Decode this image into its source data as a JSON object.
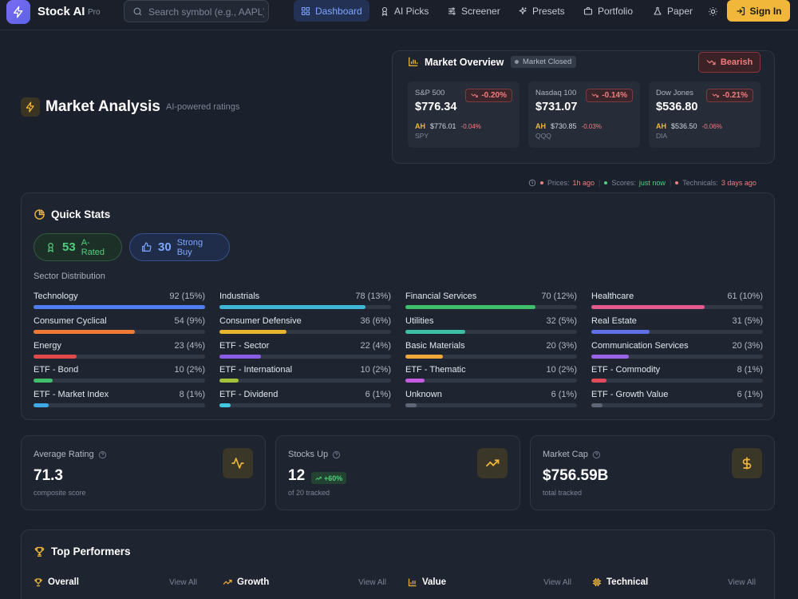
{
  "nav": {
    "brand": "Stock AI",
    "brand_badge": "Pro",
    "search_placeholder": "Search symbol (e.g., AAPL)",
    "items": [
      {
        "label": "Dashboard",
        "icon": "grid-icon",
        "active": true
      },
      {
        "label": "AI Picks",
        "icon": "award-icon"
      },
      {
        "label": "Screener",
        "icon": "sliders-icon"
      },
      {
        "label": "Presets",
        "icon": "sparkles-icon"
      },
      {
        "label": "Portfolio",
        "icon": "briefcase-icon"
      },
      {
        "label": "Paper",
        "icon": "flask-icon"
      }
    ],
    "sign_in": "Sign In"
  },
  "header": {
    "title": "Market Analysis",
    "subtitle": "AI-powered ratings"
  },
  "market_overview": {
    "title": "Market Overview",
    "status": "Market Closed",
    "sentiment": "Bearish",
    "indices": [
      {
        "name": "S&P 500",
        "price": "$776.34",
        "change": "-0.20%",
        "ah_label": "AH",
        "ah_price": "$776.01",
        "ah_change": "-0.04%",
        "ticker": "SPY"
      },
      {
        "name": "Nasdaq 100",
        "price": "$731.07",
        "change": "-0.14%",
        "ah_label": "AH",
        "ah_price": "$730.85",
        "ah_change": "-0.03%",
        "ticker": "QQQ"
      },
      {
        "name": "Dow Jones",
        "price": "$536.80",
        "change": "-0.21%",
        "ah_label": "AH",
        "ah_price": "$536.50",
        "ah_change": "-0.06%",
        "ticker": "DIA"
      }
    ]
  },
  "freshness": {
    "prices_label": "Prices:",
    "prices_value": "1h ago",
    "scores_label": "Scores:",
    "scores_value": "just now",
    "tech_label": "Technicals:",
    "tech_value": "3 days ago",
    "colors": {
      "red": "#f07e7e",
      "green": "#4fd07d"
    }
  },
  "quick_stats": {
    "title": "Quick Stats",
    "a_rated_count": "53",
    "a_rated_label": "A-Rated",
    "strong_buy_count": "30",
    "strong_buy_label": "Strong Buy",
    "sector_label": "Sector Distribution",
    "sectors": [
      {
        "name": "Technology",
        "value": "92 (15%)",
        "fill": 1.0,
        "color": "#4f7ef0"
      },
      {
        "name": "Industrials",
        "value": "78 (13%)",
        "fill": 0.85,
        "color": "#3fb6d6"
      },
      {
        "name": "Financial Services",
        "value": "70 (12%)",
        "fill": 0.76,
        "color": "#3fbf6a"
      },
      {
        "name": "Healthcare",
        "value": "61 (10%)",
        "fill": 0.66,
        "color": "#e45a8c"
      },
      {
        "name": "Consumer Cyclical",
        "value": "54 (9%)",
        "fill": 0.59,
        "color": "#f07a35"
      },
      {
        "name": "Consumer Defensive",
        "value": "36 (6%)",
        "fill": 0.39,
        "color": "#e6b42f"
      },
      {
        "name": "Utilities",
        "value": "32 (5%)",
        "fill": 0.35,
        "color": "#3cbfa4"
      },
      {
        "name": "Real Estate",
        "value": "31 (5%)",
        "fill": 0.34,
        "color": "#6270e8"
      },
      {
        "name": "Energy",
        "value": "23 (4%)",
        "fill": 0.25,
        "color": "#e24a4a"
      },
      {
        "name": "ETF - Sector",
        "value": "22 (4%)",
        "fill": 0.24,
        "color": "#8b5ce6"
      },
      {
        "name": "Basic Materials",
        "value": "20 (3%)",
        "fill": 0.22,
        "color": "#f0a83a"
      },
      {
        "name": "Communication Services",
        "value": "20 (3%)",
        "fill": 0.22,
        "color": "#9b62e8"
      },
      {
        "name": "ETF - Bond",
        "value": "10 (2%)",
        "fill": 0.11,
        "color": "#3fbf6a"
      },
      {
        "name": "ETF - International",
        "value": "10 (2%)",
        "fill": 0.11,
        "color": "#a3c23a"
      },
      {
        "name": "ETF - Thematic",
        "value": "10 (2%)",
        "fill": 0.11,
        "color": "#c65ae0"
      },
      {
        "name": "ETF - Commodity",
        "value": "8 (1%)",
        "fill": 0.09,
        "color": "#e24a5a"
      },
      {
        "name": "ETF - Market Index",
        "value": "8 (1%)",
        "fill": 0.09,
        "color": "#3fa8e6"
      },
      {
        "name": "ETF - Dividend",
        "value": "6 (1%)",
        "fill": 0.065,
        "color": "#3fc8e0"
      },
      {
        "name": "Unknown",
        "value": "6 (1%)",
        "fill": 0.065,
        "color": "#5e6675"
      },
      {
        "name": "ETF - Growth Value",
        "value": "6 (1%)",
        "fill": 0.065,
        "color": "#5e6675"
      }
    ]
  },
  "cards": {
    "avg_title": "Average Rating",
    "avg_value": "71.3",
    "avg_sub": "composite score",
    "up_title": "Stocks Up",
    "up_value": "12",
    "up_badge": "+60%",
    "up_sub": "of 20 tracked",
    "cap_title": "Market Cap",
    "cap_value": "$756.59B",
    "cap_sub": "total tracked"
  },
  "top_performers": {
    "title": "Top Performers",
    "view_all": "View All",
    "columns": [
      {
        "label": "Overall",
        "icon": "trophy-icon"
      },
      {
        "label": "Growth",
        "icon": "trending-up-icon"
      },
      {
        "label": "Value",
        "icon": "bar-chart-icon"
      },
      {
        "label": "Technical",
        "icon": "cpu-icon"
      }
    ]
  }
}
